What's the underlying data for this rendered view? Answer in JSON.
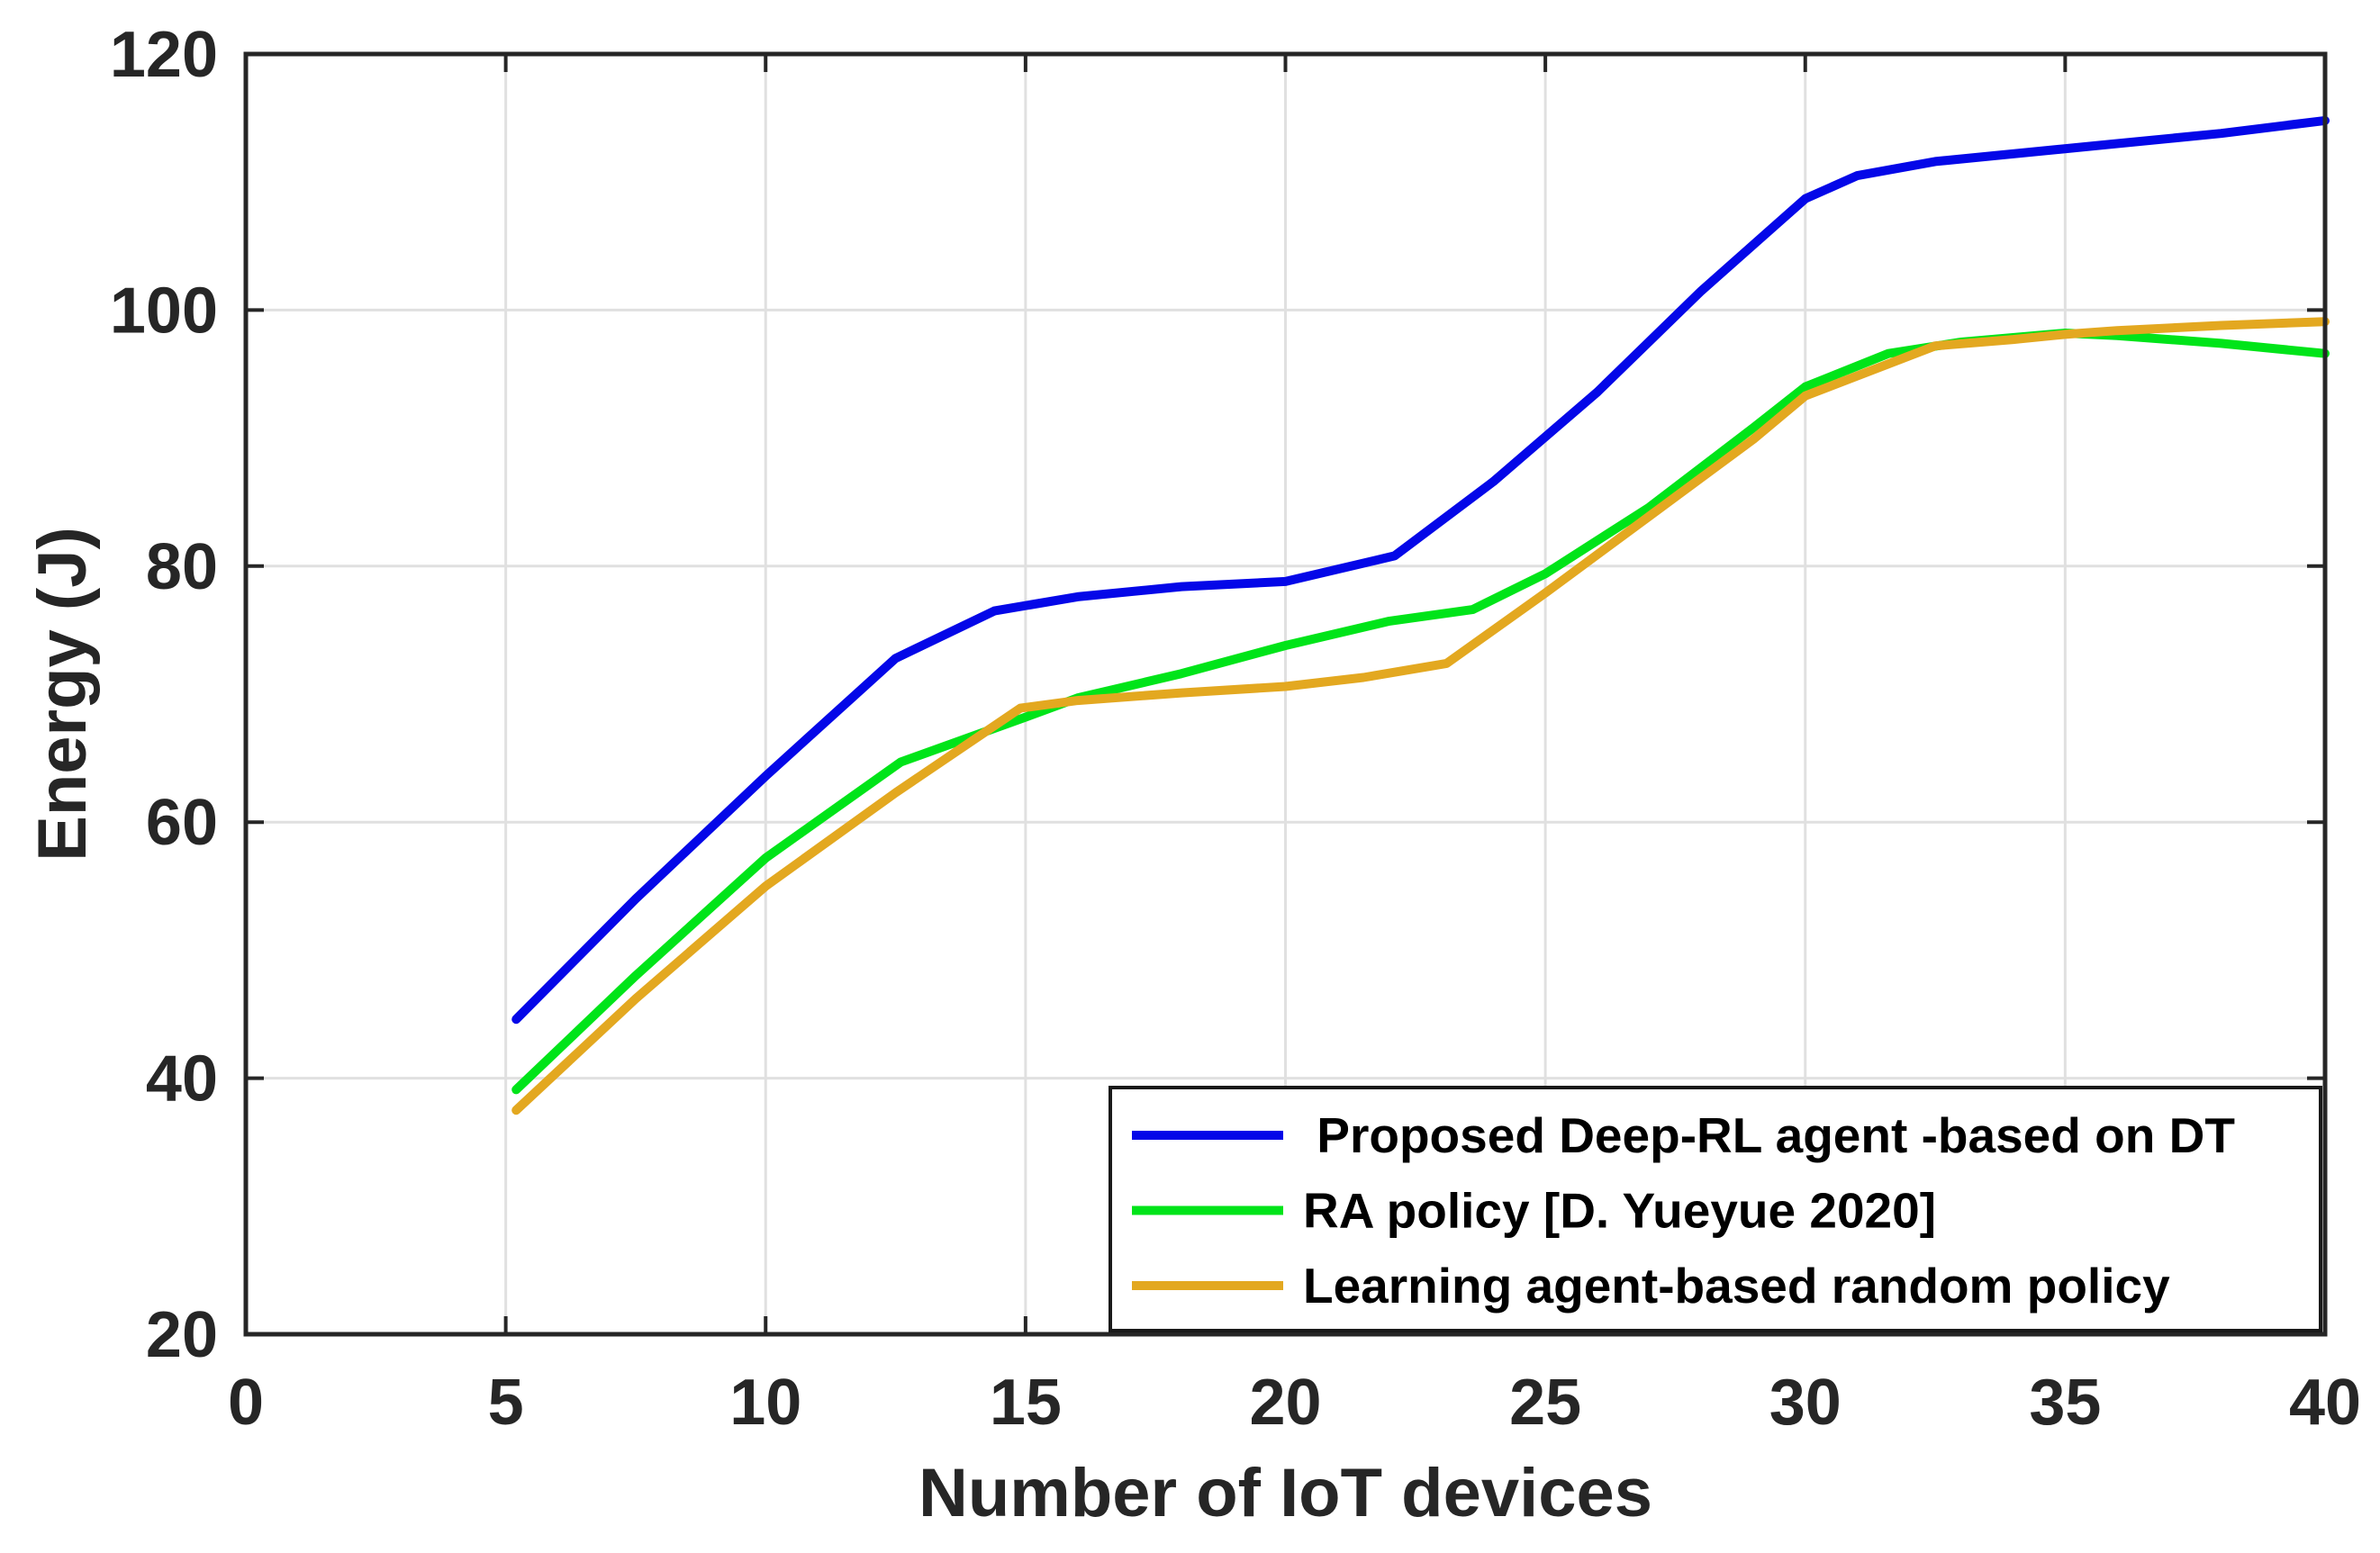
{
  "figure": {
    "background_color": "#ffffff",
    "axis_color": "#262626",
    "grid_color": "#e0e0e0",
    "legend_border_color": "#1a1a1a",
    "legend_background": "#ffffff"
  },
  "chart_data": {
    "type": "line",
    "title": "",
    "xlabel": "Number of IoT devices",
    "ylabel": "Energy (J)",
    "xlim": [
      0,
      40
    ],
    "ylim": [
      20,
      120
    ],
    "xticks": [
      0,
      5,
      10,
      15,
      20,
      25,
      30,
      35,
      40
    ],
    "yticks": [
      20,
      40,
      60,
      80,
      100,
      120
    ],
    "grid": true,
    "legend_position": "bottom-right",
    "series": [
      {
        "name": "Proposed Deep-RL agent -based on DT",
        "legend_label": " Proposed Deep-RL agent -based on DT",
        "color": "#0407e8",
        "line_width": 10,
        "x": [
          5.2,
          7.5,
          10,
          12.5,
          14.4,
          16,
          18,
          20,
          22.1,
          24,
          26,
          28,
          30,
          31,
          32.5,
          34,
          36,
          38,
          40
        ],
        "y": [
          44.6,
          54.0,
          63.6,
          72.8,
          76.5,
          77.6,
          78.4,
          78.8,
          80.8,
          86.6,
          93.6,
          101.5,
          108.7,
          110.5,
          111.6,
          112.2,
          113.0,
          113.8,
          114.8
        ]
      },
      {
        "name": "RA policy [D. Yueyue 2020]",
        "legend_label": "RA policy [D. Yueyue 2020]",
        "color": "#00e419",
        "line_width": 10,
        "x": [
          5.2,
          7.5,
          10,
          12.6,
          15,
          16,
          18,
          20,
          22,
          23.6,
          25,
          27,
          29,
          30,
          31.6,
          33,
          35,
          36,
          38,
          40
        ],
        "y": [
          39.1,
          48.0,
          57.2,
          64.7,
          68.2,
          69.7,
          71.6,
          73.8,
          75.7,
          76.6,
          79.4,
          84.6,
          90.8,
          94.0,
          96.6,
          97.5,
          98.2,
          98.0,
          97.4,
          96.6
        ]
      },
      {
        "name": "Learning agent-based random policy",
        "legend_label": "Learning agent-based random policy",
        "color": "#e3a820",
        "line_width": 10,
        "x": [
          5.2,
          7.5,
          10,
          12.5,
          14.9,
          16,
          18,
          20,
          21.5,
          23.1,
          25,
          27,
          29,
          30,
          32.5,
          34,
          35,
          36,
          38,
          40
        ],
        "y": [
          37.5,
          46.2,
          55.0,
          62.3,
          68.9,
          69.5,
          70.1,
          70.6,
          71.3,
          72.4,
          77.9,
          83.9,
          89.9,
          93.3,
          97.2,
          97.7,
          98.1,
          98.4,
          98.8,
          99.1
        ]
      }
    ]
  }
}
